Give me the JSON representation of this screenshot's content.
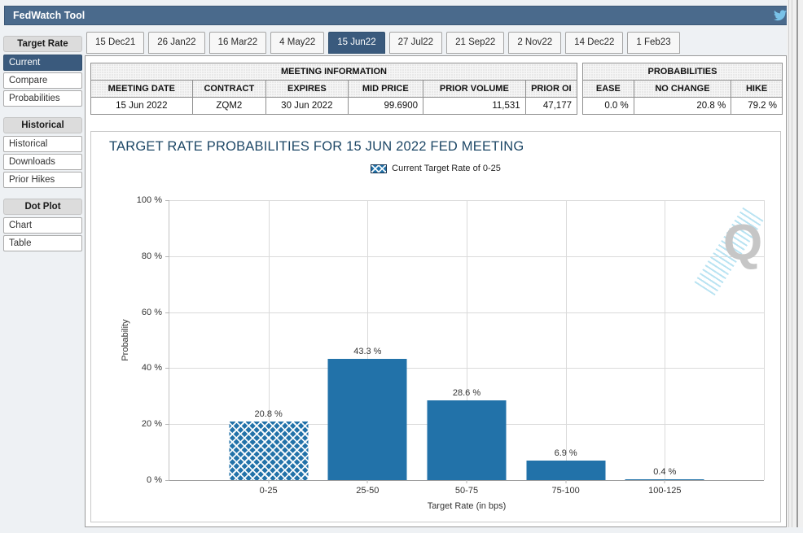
{
  "app": {
    "header_title": "FedWatch Tool"
  },
  "tabs": [
    {
      "label": "15 Dec21",
      "selected": false
    },
    {
      "label": "26 Jan22",
      "selected": false
    },
    {
      "label": "16 Mar22",
      "selected": false
    },
    {
      "label": "4 May22",
      "selected": false
    },
    {
      "label": "15 Jun22",
      "selected": true
    },
    {
      "label": "27 Jul22",
      "selected": false
    },
    {
      "label": "21 Sep22",
      "selected": false
    },
    {
      "label": "2 Nov22",
      "selected": false
    },
    {
      "label": "14 Dec22",
      "selected": false
    },
    {
      "label": "1 Feb23",
      "selected": false
    }
  ],
  "sidebar": {
    "sections": [
      {
        "header": "Target Rate",
        "items": [
          {
            "label": "Current",
            "selected": true
          },
          {
            "label": "Compare",
            "selected": false
          },
          {
            "label": "Probabilities",
            "selected": false
          }
        ]
      },
      {
        "header": "Historical",
        "items": [
          {
            "label": "Historical",
            "selected": false
          },
          {
            "label": "Downloads",
            "selected": false
          },
          {
            "label": "Prior Hikes",
            "selected": false
          }
        ]
      },
      {
        "header": "Dot Plot",
        "items": [
          {
            "label": "Chart",
            "selected": false
          },
          {
            "label": "Table",
            "selected": false
          }
        ]
      }
    ]
  },
  "meeting_info": {
    "title": "MEETING INFORMATION",
    "columns": [
      "MEETING DATE",
      "CONTRACT",
      "EXPIRES",
      "MID PRICE",
      "PRIOR VOLUME",
      "PRIOR OI"
    ],
    "row": [
      "15 Jun 2022",
      "ZQM2",
      "30 Jun 2022",
      "99.6900",
      "11,531",
      "47,177"
    ]
  },
  "probabilities": {
    "title": "PROBABILITIES",
    "columns": [
      "EASE",
      "NO CHANGE",
      "HIKE"
    ],
    "row": [
      "0.0 %",
      "20.8 %",
      "79.2 %"
    ]
  },
  "chart_data": {
    "type": "bar",
    "title": "TARGET RATE PROBABILITIES FOR 15 JUN 2022 FED MEETING",
    "legend": "Current Target Rate of 0-25",
    "categories": [
      "0-25",
      "25-50",
      "50-75",
      "75-100",
      "100-125"
    ],
    "values": [
      20.8,
      43.3,
      28.6,
      6.9,
      0.4
    ],
    "value_labels": [
      "20.8 %",
      "43.3 %",
      "28.6 %",
      "6.9 %",
      "0.4 %"
    ],
    "hatched_category": "0-25",
    "xlabel": "Target Rate (in bps)",
    "ylabel": "Probability",
    "ylim": [
      0,
      100
    ],
    "ytick_labels": [
      "100 %",
      "80 %",
      "60 %",
      "40 %",
      "20 %",
      "0 %"
    ],
    "grid": true,
    "legend_position": "top-center",
    "bar_color": "#2272a9",
    "watermark_letter": "Q"
  },
  "colors": {
    "header_bg": "#4a6a8c",
    "selected_bg": "#3a5a7d",
    "bar": "#2272a9",
    "chart_title": "#1d4766"
  }
}
